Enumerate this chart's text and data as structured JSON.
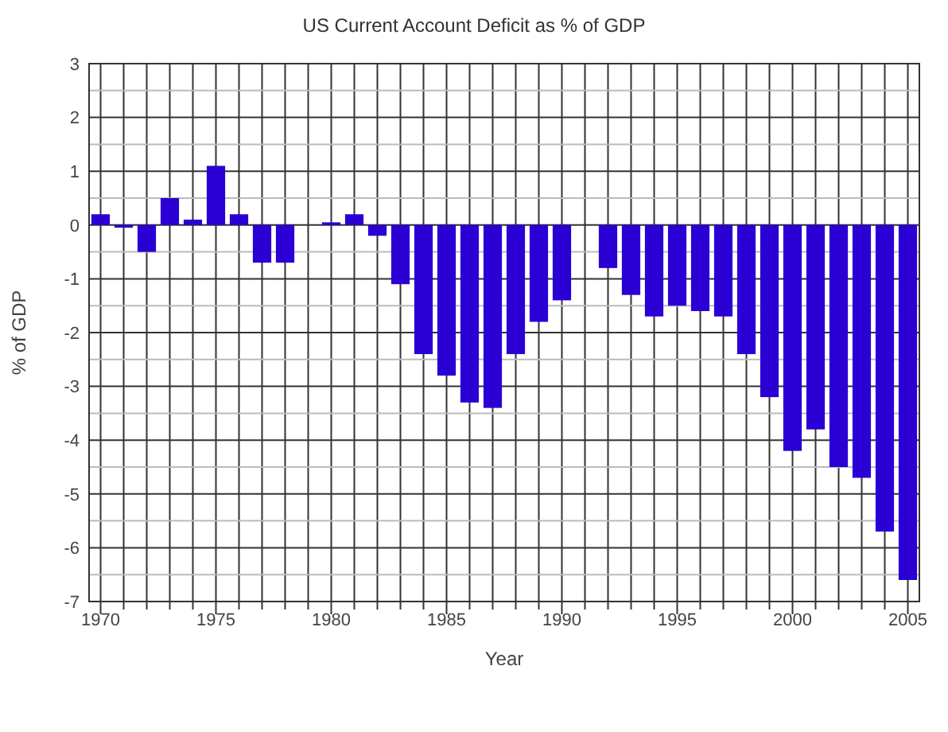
{
  "chart_data": {
    "type": "bar",
    "title": "US Current Account Deficit as % of GDP",
    "xlabel": "Year",
    "ylabel": "% of GDP",
    "x": [
      1970,
      1971,
      1972,
      1973,
      1974,
      1975,
      1976,
      1977,
      1978,
      1979,
      1980,
      1981,
      1982,
      1983,
      1984,
      1985,
      1986,
      1987,
      1988,
      1989,
      1990,
      1991,
      1992,
      1993,
      1994,
      1995,
      1996,
      1997,
      1998,
      1999,
      2000,
      2001,
      2002,
      2003,
      2004,
      2005
    ],
    "values": [
      0.2,
      -0.05,
      -0.5,
      0.5,
      0.1,
      1.1,
      0.2,
      -0.7,
      -0.7,
      0,
      0.05,
      0.2,
      -0.2,
      -1.1,
      -2.4,
      -2.8,
      -3.3,
      -3.4,
      -2.4,
      -1.8,
      -1.4,
      0,
      -0.8,
      -1.3,
      -1.7,
      -1.5,
      -1.6,
      -1.7,
      -2.4,
      -3.2,
      -4.2,
      -3.8,
      -4.5,
      -4.7,
      -5.7,
      -6.6
    ],
    "color": "#2a00d4",
    "xlim": [
      1969.5,
      2005.5
    ],
    "xticks": [
      1970,
      {
        "value": 1971,
        "label": null
      },
      {
        "value": 1972,
        "label": null
      },
      {
        "value": 1973,
        "label": null
      },
      {
        "value": 1974,
        "label": null
      },
      1975,
      {
        "value": 1976,
        "label": null
      },
      {
        "value": 1977,
        "label": null
      },
      {
        "value": 1978,
        "label": null
      },
      {
        "value": 1979,
        "label": null
      },
      1980,
      {
        "value": 1981,
        "label": null
      },
      {
        "value": 1982,
        "label": null
      },
      {
        "value": 1983,
        "label": null
      },
      {
        "value": 1984,
        "label": null
      },
      1985,
      {
        "value": 1986,
        "label": null
      },
      {
        "value": 1987,
        "label": null
      },
      {
        "value": 1988,
        "label": null
      },
      {
        "value": 1989,
        "label": null
      },
      1990,
      {
        "value": 1991,
        "label": null
      },
      {
        "value": 1992,
        "label": null
      },
      {
        "value": 1993,
        "label": null
      },
      {
        "value": 1994,
        "label": null
      },
      1995,
      {
        "value": 1996,
        "label": null
      },
      {
        "value": 1997,
        "label": null
      },
      {
        "value": 1998,
        "label": null
      },
      {
        "value": 1999,
        "label": null
      },
      2000,
      {
        "value": 2001,
        "label": null
      },
      {
        "value": 2002,
        "label": null
      },
      {
        "value": 2003,
        "label": null
      },
      {
        "value": 2004,
        "label": null
      },
      2005
    ],
    "ylim": [
      -7,
      3
    ],
    "yticks": [
      -7,
      {
        "value": -6.5,
        "label": null
      },
      -6,
      {
        "value": -5.5,
        "label": null
      },
      -5,
      {
        "value": -4.5,
        "label": null
      },
      -4,
      {
        "value": -3.5,
        "label": null
      },
      -3,
      {
        "value": -2.5,
        "label": null
      },
      -2,
      {
        "value": -1.5,
        "label": null
      },
      -1,
      {
        "value": -0.5,
        "label": null
      },
      0,
      {
        "value": 0.5,
        "label": null
      },
      1,
      {
        "value": 1.5,
        "label": null
      },
      2,
      {
        "value": 2.5,
        "label": null
      },
      3
    ],
    "grid": true
  }
}
